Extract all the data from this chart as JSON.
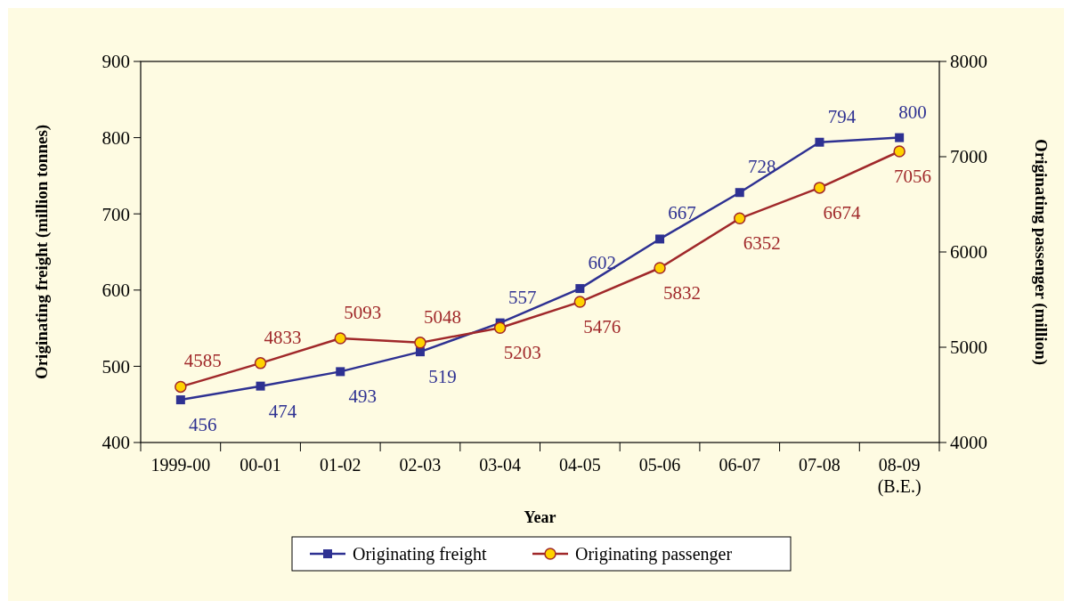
{
  "chart_data": {
    "type": "line",
    "xlabel": "Year",
    "ylabel": "Originating freight (million tonnes)",
    "y2label": "Originating passenger (million)",
    "categories": [
      "1999-00",
      "00-01",
      "01-02",
      "02-03",
      "03-04",
      "04-05",
      "05-06",
      "06-07",
      "07-08",
      "08-09\n(B.E.)"
    ],
    "series": [
      {
        "name": "Originating freight",
        "color": "#2e3192",
        "marker": "square",
        "values": [
          456,
          474,
          493,
          519,
          557,
          602,
          667,
          728,
          794,
          800
        ]
      },
      {
        "name": "Originating passenger",
        "color": "#a0282a",
        "marker": "circle",
        "axis": "y2",
        "values": [
          4585,
          4833,
          5093,
          5048,
          5203,
          5476,
          5832,
          6352,
          6674,
          7056
        ]
      }
    ],
    "ylim": [
      400,
      900
    ],
    "yticks": [
      400,
      500,
      600,
      700,
      800,
      900
    ],
    "y2lim": [
      4000,
      8000
    ],
    "y2ticks": [
      4000,
      5000,
      6000,
      7000,
      8000
    ],
    "data_labels": true,
    "legend": "bottom",
    "grid": false
  }
}
